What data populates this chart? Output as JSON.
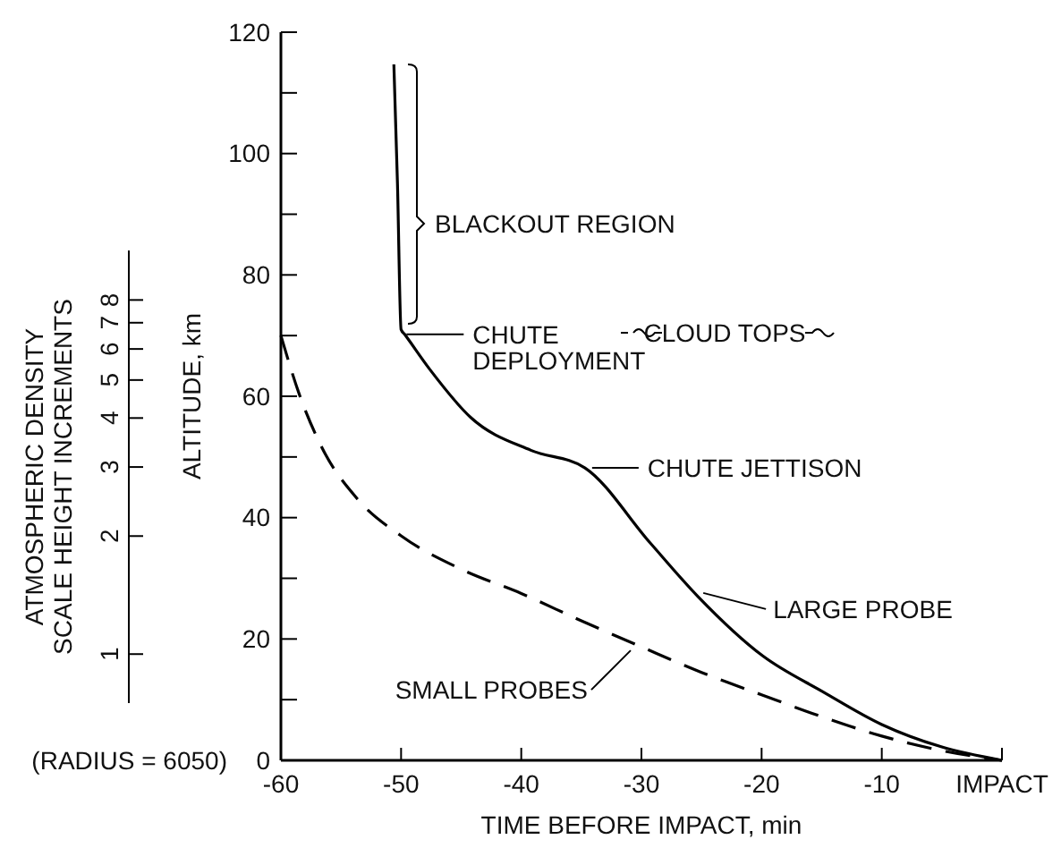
{
  "chart_data": {
    "type": "line",
    "xlabel": "TIME BEFORE IMPACT, min",
    "ylabel": "ALTITUDE, km",
    "y2label": "ATMOSPHERIC DENSITY\nSCALE HEIGHT INCREMENTS",
    "xlim": [
      -60,
      0
    ],
    "xticks": [
      -60,
      -50,
      -40,
      -30,
      -20,
      -10,
      {
        "value": 0,
        "label": "IMPACT"
      }
    ],
    "ylim": [
      0,
      120
    ],
    "yticks": [
      0,
      {
        "value": 10,
        "label": null
      },
      20,
      {
        "value": 30,
        "label": null
      },
      40,
      {
        "value": 50,
        "label": null
      },
      60,
      {
        "value": 70,
        "label": null
      },
      80,
      {
        "value": 90,
        "label": null
      },
      100,
      {
        "value": 110,
        "label": null
      },
      120
    ],
    "y2lim": [
      0.75,
      10.7
    ],
    "y2ticks": [
      1,
      2,
      3,
      4,
      5,
      6,
      7,
      8
    ],
    "log": "y2",
    "marker": "none",
    "series": [
      {
        "color": "#000000",
        "line_style": "solid",
        "x": [
          -50.6,
          -50.3,
          -50,
          -49.7,
          -47.6,
          -44.2,
          -39.2,
          -34.7,
          -29.3,
          -25.3,
          -19.9,
          -14.9,
          -10,
          -5,
          0
        ],
        "values": [
          114.7,
          95,
          71,
          70.2,
          64.4,
          56.5,
          51.1,
          48.2,
          35.9,
          27,
          17.2,
          11.3,
          5.9,
          2.2,
          0
        ]
      },
      {
        "color": "#000000",
        "line_style": "dashed",
        "x": [
          -60,
          -58.5,
          -56.6,
          -53.6,
          -50,
          -45,
          -40,
          -35,
          -30,
          -25,
          -20,
          -15,
          -10,
          -5,
          0
        ],
        "values": [
          70,
          60.5,
          51.6,
          43,
          37,
          31.5,
          27.5,
          23,
          18.7,
          14.5,
          10.8,
          7.2,
          4,
          1.6,
          0
        ]
      }
    ],
    "annotations": [
      "BLACKOUT REGION",
      {
        "text": "CHUTE\nDEPLOYMENT",
        "x": -50,
        "y": 70.2
      },
      "CLOUD TOPS",
      {
        "text": "CHUTE JETTISON",
        "x": -34.7,
        "y": 48.2
      },
      {
        "text": "LARGE PROBE",
        "x": -25.3,
        "y": 27
      },
      {
        "text": "SMALL PROBES",
        "x": -30.3,
        "y": 18.7
      },
      "(RADIUS = 6050)"
    ]
  }
}
